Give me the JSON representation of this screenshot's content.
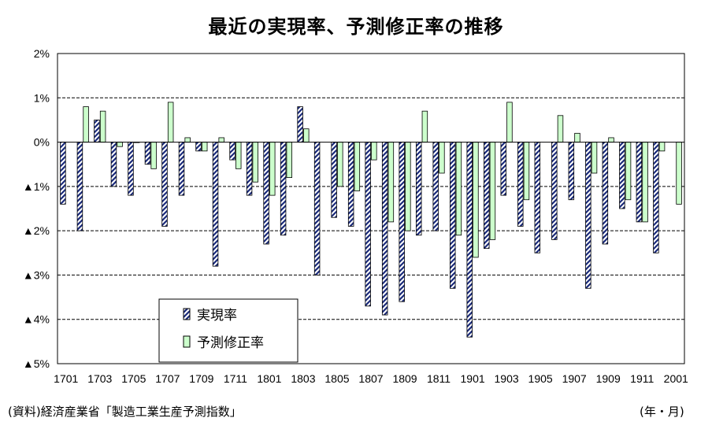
{
  "title": "最近の実現率、予測修正率の推移",
  "source": "(資料)経済産業省「製造工業生産予測指数」",
  "unit": "(年・月)",
  "chart_data": {
    "type": "bar",
    "title": "最近の実現率、予測修正率の推移",
    "ylim": [
      -5,
      2
    ],
    "y_ticks": [
      {
        "value": 2,
        "label": "2%"
      },
      {
        "value": 1,
        "label": "1%"
      },
      {
        "value": 0,
        "label": "0%"
      },
      {
        "value": -1,
        "label": "▲1%"
      },
      {
        "value": -2,
        "label": "▲2%"
      },
      {
        "value": -3,
        "label": "▲3%"
      },
      {
        "value": -4,
        "label": "▲4%"
      },
      {
        "value": -5,
        "label": "▲5%"
      }
    ],
    "categories": [
      "1701",
      "1702",
      "1703",
      "1704",
      "1705",
      "1706",
      "1707",
      "1708",
      "1709",
      "1710",
      "1711",
      "1712",
      "1801",
      "1802",
      "1803",
      "1804",
      "1805",
      "1806",
      "1807",
      "1808",
      "1809",
      "1810",
      "1811",
      "1812",
      "1901",
      "1902",
      "1903",
      "1904",
      "1905",
      "1906",
      "1907",
      "1908",
      "1909",
      "1910",
      "1911",
      "1912",
      "2001"
    ],
    "x_tick_labels": [
      "1701",
      "1703",
      "1705",
      "1707",
      "1709",
      "1711",
      "1801",
      "1803",
      "1805",
      "1807",
      "1809",
      "1811",
      "1901",
      "1903",
      "1905",
      "1907",
      "1909",
      "1911",
      "2001"
    ],
    "grid": "horizontal dashed",
    "legend_position": "bottom-left inside",
    "series": [
      {
        "name": "実現率",
        "pattern": "navy diagonal stripes",
        "values": [
          -1.4,
          -2.0,
          0.5,
          -1.0,
          -1.2,
          -0.5,
          -1.9,
          -1.2,
          -0.2,
          -2.8,
          -0.4,
          -1.2,
          -2.3,
          -2.1,
          0.8,
          -3.0,
          -1.7,
          -1.9,
          -3.7,
          -3.9,
          -3.6,
          -2.1,
          -2.0,
          -3.3,
          -4.4,
          -2.4,
          -1.2,
          -1.9,
          -2.5,
          -2.2,
          -1.3,
          -3.3,
          -2.3,
          -1.5,
          -1.8,
          -2.5,
          null
        ]
      },
      {
        "name": "予測修正率",
        "color": "#ccffcc",
        "values": [
          null,
          0.8,
          0.7,
          -0.1,
          0.0,
          -0.6,
          0.9,
          0.1,
          -0.2,
          0.1,
          -0.6,
          -0.9,
          -1.2,
          -0.8,
          0.3,
          null,
          -1.0,
          -1.1,
          -0.4,
          -1.8,
          -2.0,
          0.7,
          -0.7,
          -2.1,
          -2.6,
          -2.2,
          0.9,
          -1.3,
          null,
          0.6,
          0.2,
          -0.7,
          0.1,
          -1.3,
          -1.8,
          -0.2,
          -1.4
        ]
      }
    ]
  }
}
